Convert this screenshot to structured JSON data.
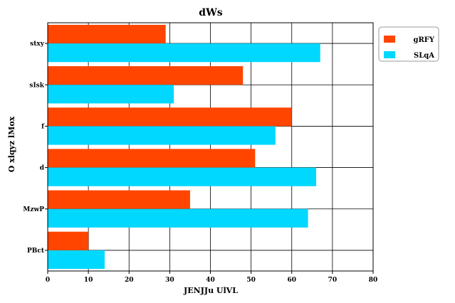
{
  "chart_data": {
    "type": "bar",
    "orientation": "horizontal",
    "title": "dWs",
    "xlabel": "JENJJu UlVL",
    "ylabel": "O xlqyz lMox",
    "categories": [
      "stxy",
      "sIsk",
      "f",
      "d",
      "MzwP",
      "PBct"
    ],
    "xlim": [
      0,
      80
    ],
    "xticks": [
      0,
      10,
      20,
      30,
      40,
      50,
      60,
      70,
      80
    ],
    "grid": true,
    "legend_position": "top-right, outside plot",
    "series": [
      {
        "name": "gRFY",
        "color": "#ff4500",
        "values": [
          29,
          48,
          60,
          51,
          35,
          10
        ]
      },
      {
        "name": "SLqA",
        "color": "#00d8ff",
        "values": [
          67,
          31,
          56,
          66,
          64,
          14
        ]
      }
    ]
  }
}
